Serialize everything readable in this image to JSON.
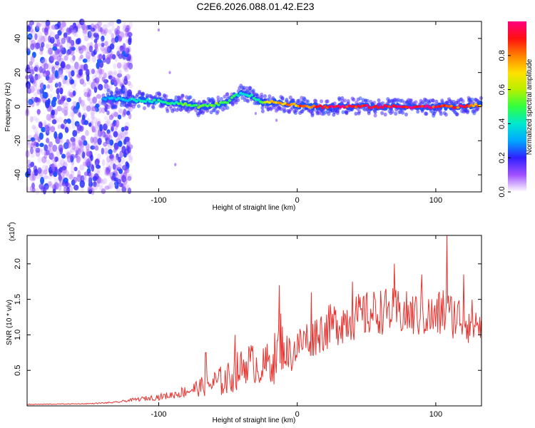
{
  "figure_title": "C2E6.2026.088.01.42.E23",
  "colors": {
    "snr_line": "#e8322e",
    "axis": "#000000",
    "low_scatter": "#6a1fe0",
    "colormap": [
      "#ffffff",
      "#a050ff",
      "#3020ff",
      "#00a8ff",
      "#00e8d0",
      "#30ff40",
      "#b8f000",
      "#ffe000",
      "#ff8000",
      "#ff1010",
      "#ff0080"
    ]
  },
  "chart_data": [
    {
      "type": "heatmap",
      "title": "",
      "xlabel": "Height of straight line (km)",
      "ylabel": "Frequency (Hz)",
      "xlim": [
        -195,
        133
      ],
      "ylim": [
        -50,
        50
      ],
      "x_ticks": [
        -100,
        0,
        100
      ],
      "x_tick_labels": [
        "-100",
        "0",
        "100"
      ],
      "y_ticks": [
        -40,
        -20,
        0,
        20,
        40
      ],
      "y_tick_labels": [
        "-40",
        "-20",
        "0",
        "20",
        "40"
      ],
      "colorbar": {
        "label": "Normalized spectral amplitude",
        "range": [
          0,
          1
        ],
        "ticks": [
          0.0,
          0.2,
          0.4,
          0.6,
          0.8
        ],
        "tick_labels": [
          "0.0",
          "0.2",
          "0.4",
          "0.6",
          "0.8"
        ]
      },
      "ridge": {
        "description_points_x": [
          -140,
          -120,
          -100,
          -85,
          -70,
          -60,
          -50,
          -45,
          -40,
          -35,
          -30,
          -25,
          -20,
          -10,
          0,
          10,
          20,
          40,
          60,
          80,
          100,
          120,
          133
        ],
        "freq_hz": [
          5,
          4,
          3,
          2,
          0,
          1,
          3,
          6,
          8,
          7,
          5,
          2,
          3,
          2,
          1,
          0,
          0,
          0,
          0,
          0,
          0,
          0,
          1
        ],
        "amplitude": [
          0.3,
          0.4,
          0.45,
          0.5,
          0.55,
          0.55,
          0.5,
          0.45,
          0.4,
          0.4,
          0.45,
          0.5,
          0.7,
          0.75,
          0.8,
          0.85,
          0.9,
          0.95,
          0.95,
          0.95,
          0.95,
          0.9,
          0.8
        ],
        "halfwidth_hz": 4
      },
      "noise_region": {
        "x_range": [
          -195,
          -120
        ],
        "freq_range": [
          -50,
          50
        ],
        "amplitude_range": [
          0.05,
          0.25
        ]
      }
    },
    {
      "type": "line",
      "title": "",
      "xlabel": "Height of straight line (km)",
      "ylabel": "SNR (10 * v/v)",
      "y_multiplier_label": "(x10",
      "y_multiplier_exp": "4",
      "y_multiplier_close": ")",
      "xlim": [
        -195,
        133
      ],
      "ylim": [
        0,
        2.4
      ],
      "x_ticks": [
        -100,
        0,
        100
      ],
      "x_tick_labels": [
        "-100",
        "0",
        "100"
      ],
      "y_ticks": [
        0.5,
        1.0,
        1.5,
        2.0
      ],
      "y_tick_labels": [
        "0.5",
        "1.0",
        "1.5",
        "2.0"
      ],
      "series": [
        {
          "name": "SNR",
          "x": [
            -195,
            -150,
            -130,
            -120,
            -110,
            -100,
            -90,
            -80,
            -70,
            -60,
            -50,
            -45,
            -40,
            -35,
            -30,
            -25,
            -20,
            -15,
            -12,
            -10,
            -5,
            0,
            5,
            10,
            20,
            30,
            40,
            50,
            60,
            70,
            80,
            90,
            100,
            105,
            110,
            120,
            133
          ],
          "values": [
            0.02,
            0.03,
            0.05,
            0.08,
            0.1,
            0.12,
            0.15,
            0.2,
            0.25,
            0.3,
            0.35,
            0.45,
            0.5,
            0.6,
            0.55,
            0.5,
            0.6,
            0.65,
            0.9,
            0.75,
            0.7,
            0.8,
            0.9,
            0.95,
            1.05,
            1.15,
            1.2,
            1.25,
            1.3,
            1.3,
            1.25,
            1.25,
            1.2,
            1.3,
            1.25,
            1.2,
            1.1
          ],
          "noise": [
            0.005,
            0.005,
            0.01,
            0.02,
            0.03,
            0.04,
            0.05,
            0.08,
            0.12,
            0.18,
            0.22,
            0.25,
            0.25,
            0.25,
            0.25,
            0.25,
            0.3,
            0.35,
            0.45,
            0.25,
            0.25,
            0.25,
            0.25,
            0.28,
            0.28,
            0.3,
            0.3,
            0.3,
            0.3,
            0.3,
            0.3,
            0.3,
            0.3,
            0.35,
            0.3,
            0.3,
            0.3
          ],
          "peaks": [
            {
              "x": -66,
              "y": 0.75
            },
            {
              "x": -45,
              "y": 1.0
            },
            {
              "x": -13,
              "y": 1.7
            },
            {
              "x": 10,
              "y": 1.6
            },
            {
              "x": 40,
              "y": 1.75
            },
            {
              "x": 70,
              "y": 2.0
            },
            {
              "x": 90,
              "y": 1.85
            },
            {
              "x": 108,
              "y": 2.4
            },
            {
              "x": 120,
              "y": 1.85
            }
          ]
        }
      ]
    }
  ]
}
